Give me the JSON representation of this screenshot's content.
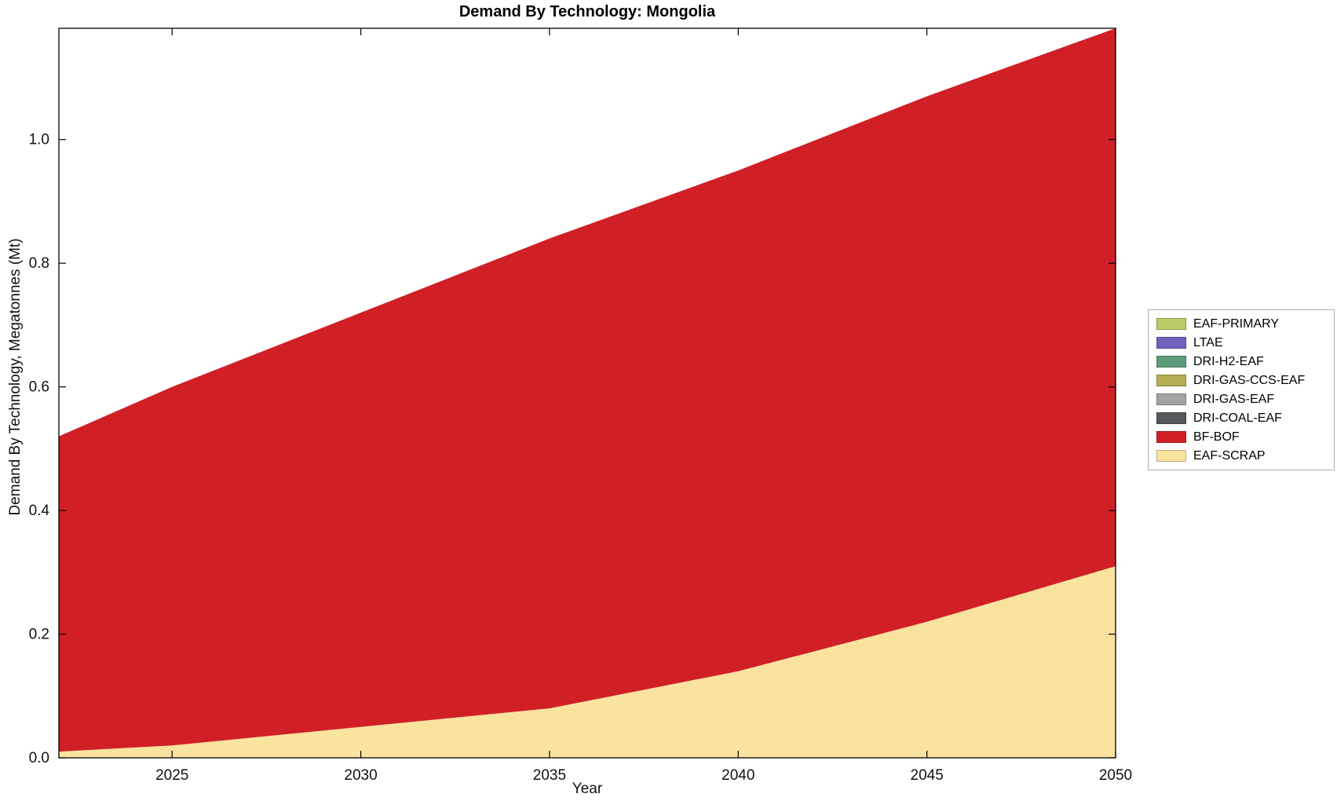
{
  "chart_data": {
    "type": "area",
    "stacked": true,
    "title": "Demand By Technology: Mongolia",
    "xlabel": "Year",
    "ylabel": "Demand By Technology, Megatonnes (Mt)",
    "x": [
      2022,
      2025,
      2030,
      2035,
      2040,
      2045,
      2050
    ],
    "xlim": [
      2022,
      2050
    ],
    "ylim": [
      0,
      1.18
    ],
    "xticks": [
      2025,
      2030,
      2035,
      2040,
      2045,
      2050
    ],
    "yticks": [
      0.0,
      0.2,
      0.4,
      0.6,
      0.8,
      1.0
    ],
    "grid": false,
    "legend_position": "right",
    "stack_order": [
      "EAF-SCRAP",
      "BF-BOF",
      "DRI-COAL-EAF",
      "DRI-GAS-EAF",
      "DRI-GAS-CCS-EAF",
      "DRI-H2-EAF",
      "LTAE",
      "EAF-PRIMARY"
    ],
    "series": [
      {
        "name": "EAF-PRIMARY",
        "color": "#b9cc67",
        "values": [
          0,
          0,
          0,
          0,
          0,
          0,
          0
        ]
      },
      {
        "name": "LTAE",
        "color": "#6f63bf",
        "values": [
          0,
          0,
          0,
          0,
          0,
          0,
          0
        ]
      },
      {
        "name": "DRI-H2-EAF",
        "color": "#5f9b7a",
        "values": [
          0,
          0,
          0,
          0,
          0,
          0,
          0
        ]
      },
      {
        "name": "DRI-GAS-CCS-EAF",
        "color": "#b5ae55",
        "values": [
          0,
          0,
          0,
          0,
          0,
          0,
          0
        ]
      },
      {
        "name": "DRI-GAS-EAF",
        "color": "#a3a3a3",
        "values": [
          0,
          0,
          0,
          0,
          0,
          0,
          0
        ]
      },
      {
        "name": "DRI-COAL-EAF",
        "color": "#56595c",
        "values": [
          0,
          0,
          0,
          0,
          0,
          0,
          0
        ]
      },
      {
        "name": "BF-BOF",
        "color": "#d02026",
        "values": [
          0.51,
          0.58,
          0.67,
          0.76,
          0.81,
          0.85,
          0.87
        ]
      },
      {
        "name": "EAF-SCRAP",
        "color": "#f9e39f",
        "values": [
          0.01,
          0.02,
          0.05,
          0.08,
          0.14,
          0.22,
          0.31
        ]
      }
    ]
  }
}
